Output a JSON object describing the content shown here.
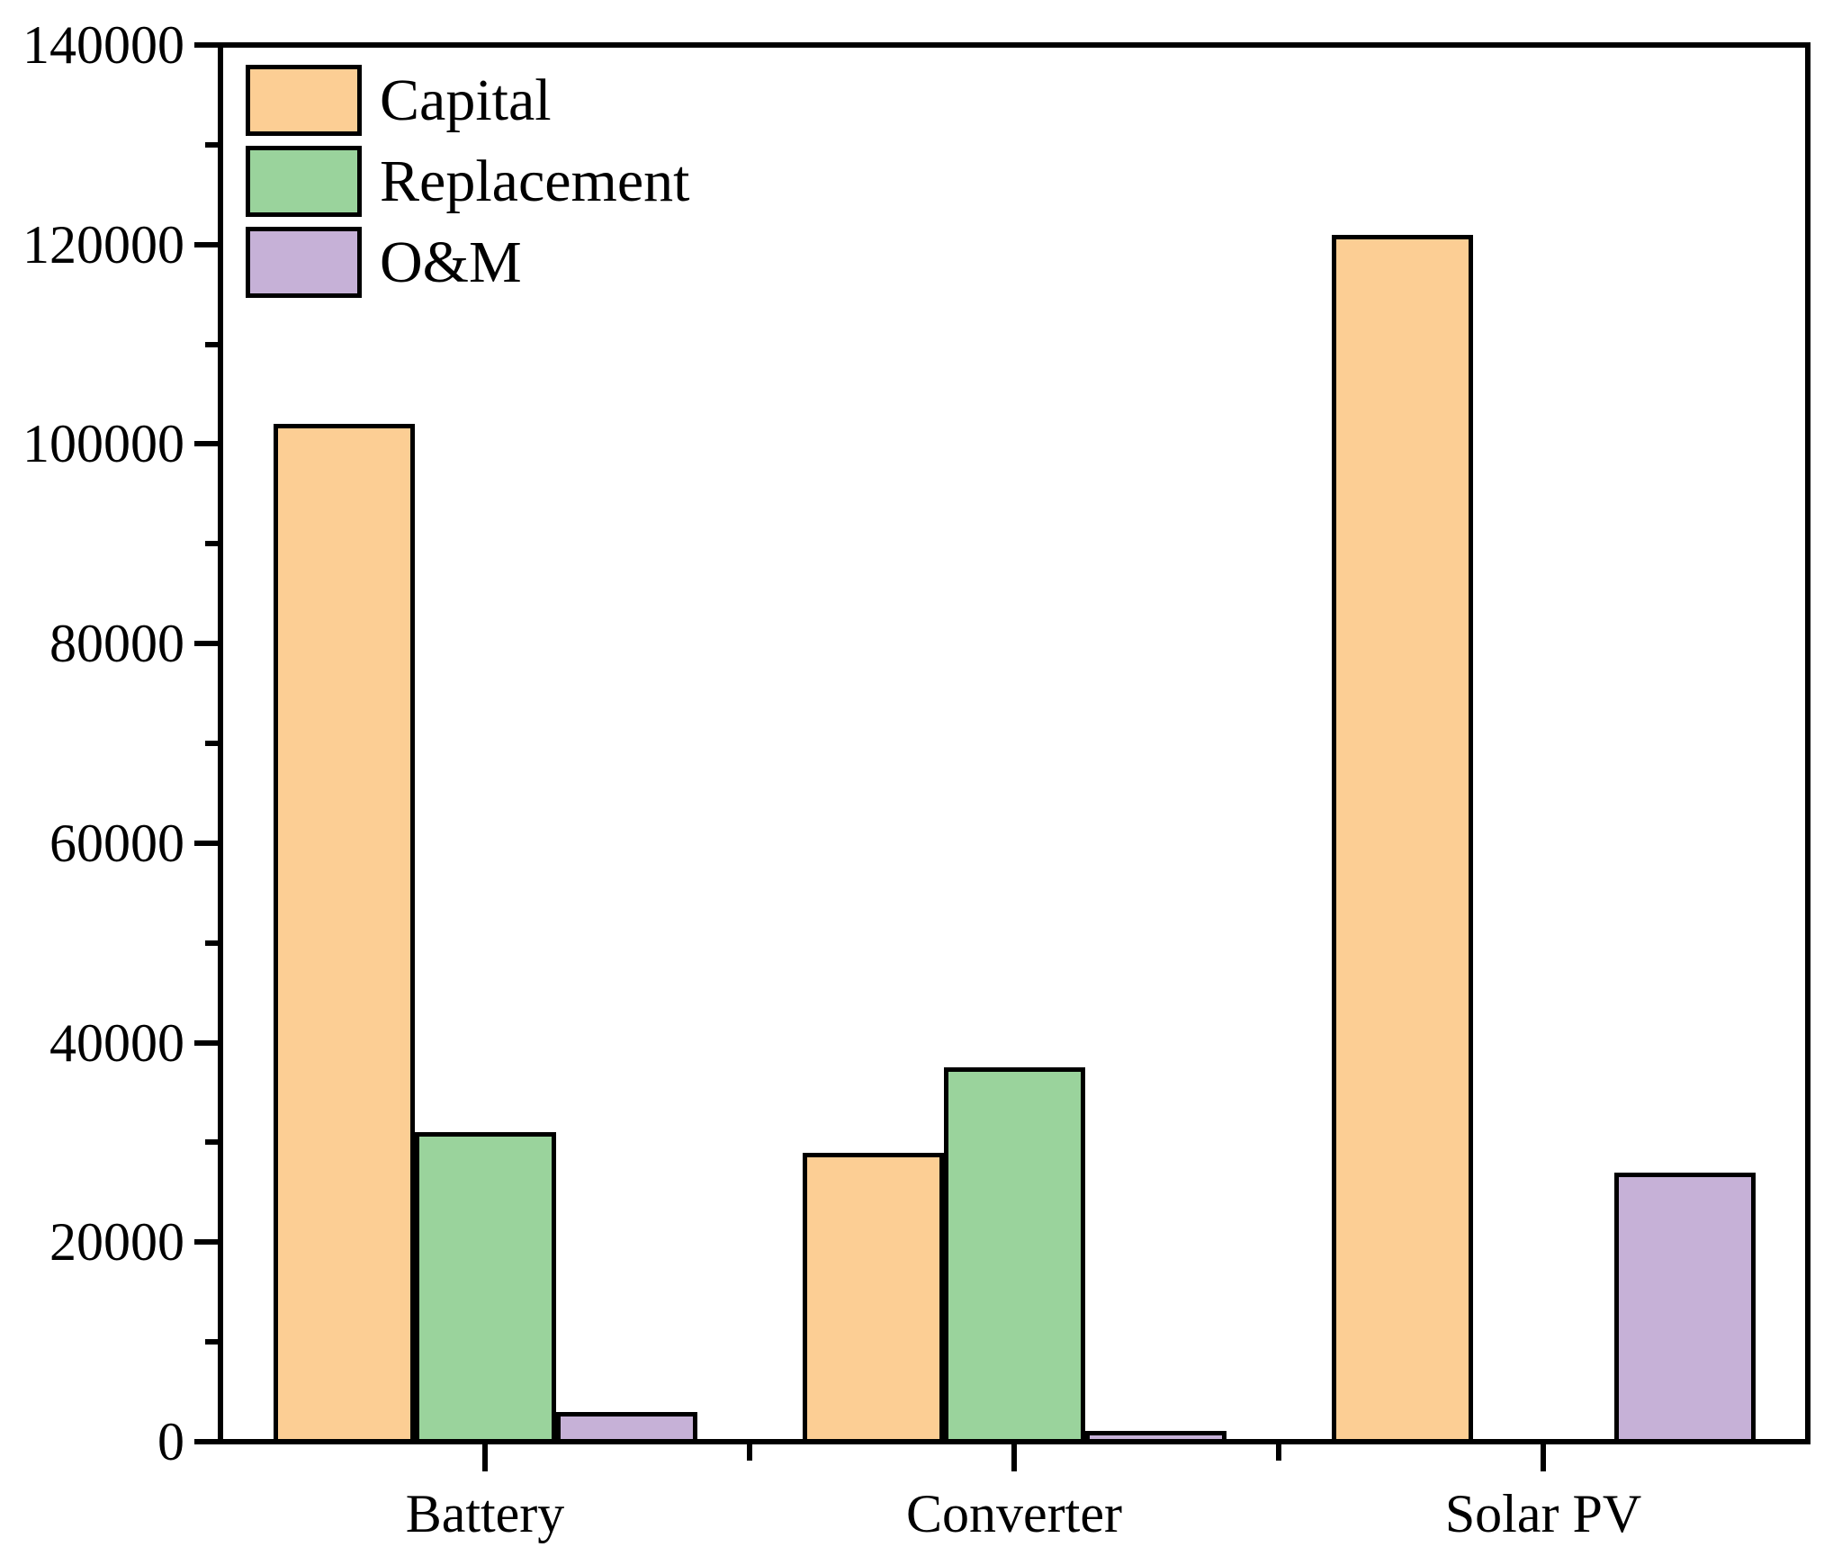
{
  "figure": {
    "background": "#ffffff",
    "axis_color": "#000000",
    "text_color": "#000000"
  },
  "chart_data": {
    "type": "bar",
    "title": "",
    "xlabel": "",
    "ylabel": "",
    "categories": [
      "Battery",
      "Converter",
      "Solar PV"
    ],
    "series": [
      {
        "name": "Capital",
        "color": "#FCCE94",
        "values": [
          102000,
          29000,
          121000
        ]
      },
      {
        "name": "Replacement",
        "color": "#9AD39C",
        "values": [
          31000,
          37500,
          0
        ]
      },
      {
        "name": "O&M",
        "color": "#C6B1D7",
        "values": [
          3000,
          1100,
          27000
        ]
      }
    ],
    "ylim": [
      0,
      140000
    ],
    "y_major_step": 20000,
    "y_minor_step": 10000,
    "y_tick_labels": [
      "0",
      "20000",
      "40000",
      "60000",
      "80000",
      "100000",
      "120000",
      "140000"
    ],
    "bar_border_color": "#000000",
    "grid": false,
    "legend_position": "top-left"
  }
}
